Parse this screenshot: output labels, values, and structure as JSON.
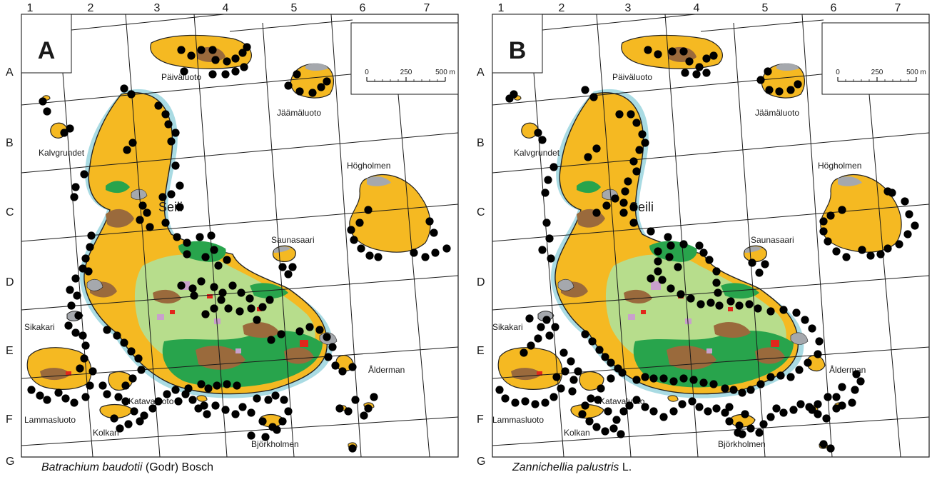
{
  "colors": {
    "forest": "#f5b922",
    "brown": "#9a6a3c",
    "green": "#28a44c",
    "lightgreen": "#b7dd8c",
    "grey": "#a5a8ad",
    "pink": "#c9a0cc",
    "red": "#e2261c",
    "water": "#a9dbe3",
    "outline": "#222222",
    "dot": "#000000"
  },
  "grid": {
    "columns": [
      "1",
      "2",
      "3",
      "4",
      "5",
      "6",
      "7"
    ],
    "rows": [
      "A",
      "B",
      "C",
      "D",
      "E",
      "F",
      "G"
    ]
  },
  "scale_bar": {
    "ticks": [
      "0",
      "250",
      "500 m"
    ]
  },
  "places": {
    "seili": "Seili",
    "paivaluoto": "Päiväluoto",
    "jaamaluoto": "Jäämäluoto",
    "kalvgrundet": "Kalvgrundet",
    "hogholmen": "Högholmen",
    "saunasaari": "Saunasaari",
    "sikakari": "Sikakari",
    "alderman": "Ålderman",
    "katavaluoto": "Katavaluoto",
    "lammasluoto": "Lammasluoto",
    "kolkan": "Kolkan",
    "bjorkholmen": "Björkholmen"
  },
  "panels": [
    {
      "letter": "A",
      "species": "Batrachium baudotii",
      "author": " (Godr) Bosch"
    },
    {
      "letter": "B",
      "species": "Zannichellia palustris",
      "author": " L."
    }
  ]
}
